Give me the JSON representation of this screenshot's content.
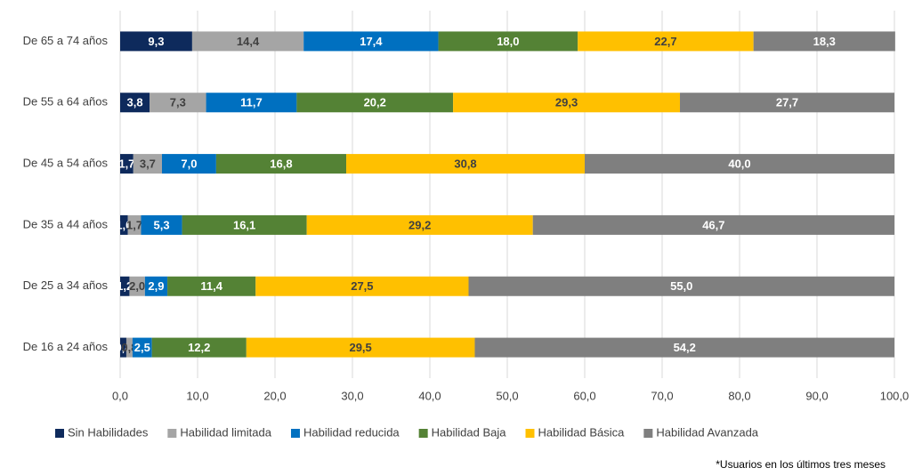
{
  "chart_data": {
    "type": "stacked-bar-horizontal",
    "categories": [
      "De 65 a 74 años",
      "De 55 a 64 años",
      "De 45 a 54 años",
      "De 35 a 44 años",
      "De 25 a 34 años",
      "De 16 a 24 años"
    ],
    "series": [
      {
        "name": "Sin Habilidades",
        "color": "#0e2a5c",
        "values": [
          9.3,
          3.8,
          1.7,
          1.0,
          1.2,
          0.8
        ],
        "value_labels": [
          "9,3",
          "3,8",
          "1,7",
          "1,0",
          "1,2",
          "0,8"
        ]
      },
      {
        "name": "Habilidad limitada",
        "color": "#a5a5a5",
        "values": [
          14.4,
          7.3,
          3.7,
          1.7,
          2.0,
          0.8
        ],
        "value_labels": [
          "14,4",
          "7,3",
          "3,7",
          "1,7",
          "2,0",
          "0,8"
        ]
      },
      {
        "name": "Habilidad reducida",
        "color": "#0070c0",
        "values": [
          17.4,
          11.7,
          7.0,
          5.3,
          2.9,
          2.5
        ],
        "value_labels": [
          "17,4",
          "11,7",
          "7,0",
          "5,3",
          "2,9",
          "2,5"
        ]
      },
      {
        "name": "Habilidad Baja",
        "color": "#548235",
        "values": [
          18.0,
          20.2,
          16.8,
          16.1,
          11.4,
          12.2
        ],
        "value_labels": [
          "18,0",
          "20,2",
          "16,8",
          "16,1",
          "11,4",
          "12,2"
        ]
      },
      {
        "name": "Habilidad Básica",
        "color": "#ffc000",
        "values": [
          22.7,
          29.3,
          30.8,
          29.2,
          27.5,
          29.5
        ],
        "value_labels": [
          "22,7",
          "29,3",
          "30,8",
          "29,2",
          "27,5",
          "29,5"
        ]
      },
      {
        "name": "Habilidad Avanzada",
        "color": "#7f7f7f",
        "values": [
          18.3,
          27.7,
          40.0,
          46.7,
          55.0,
          54.2
        ],
        "value_labels": [
          "18,3",
          "27,7",
          "40,0",
          "46,7",
          "55,0",
          "54,2"
        ]
      }
    ],
    "xlim": [
      0,
      100
    ],
    "xticks": [
      {
        "value": 0,
        "label": "0,0"
      },
      {
        "value": 10,
        "label": "10,0"
      },
      {
        "value": 20,
        "label": "20,0"
      },
      {
        "value": 30,
        "label": "30,0"
      },
      {
        "value": 40,
        "label": "40,0"
      },
      {
        "value": 50,
        "label": "50,0"
      },
      {
        "value": 60,
        "label": "60,0"
      },
      {
        "value": 70,
        "label": "70,0"
      },
      {
        "value": 80,
        "label": "80,0"
      },
      {
        "value": 90,
        "label": "90,0"
      },
      {
        "value": 100,
        "label": "100,0"
      }
    ],
    "grid": true,
    "legend": "bottom",
    "annotation": "*Usuarios en los últimos tres meses"
  }
}
